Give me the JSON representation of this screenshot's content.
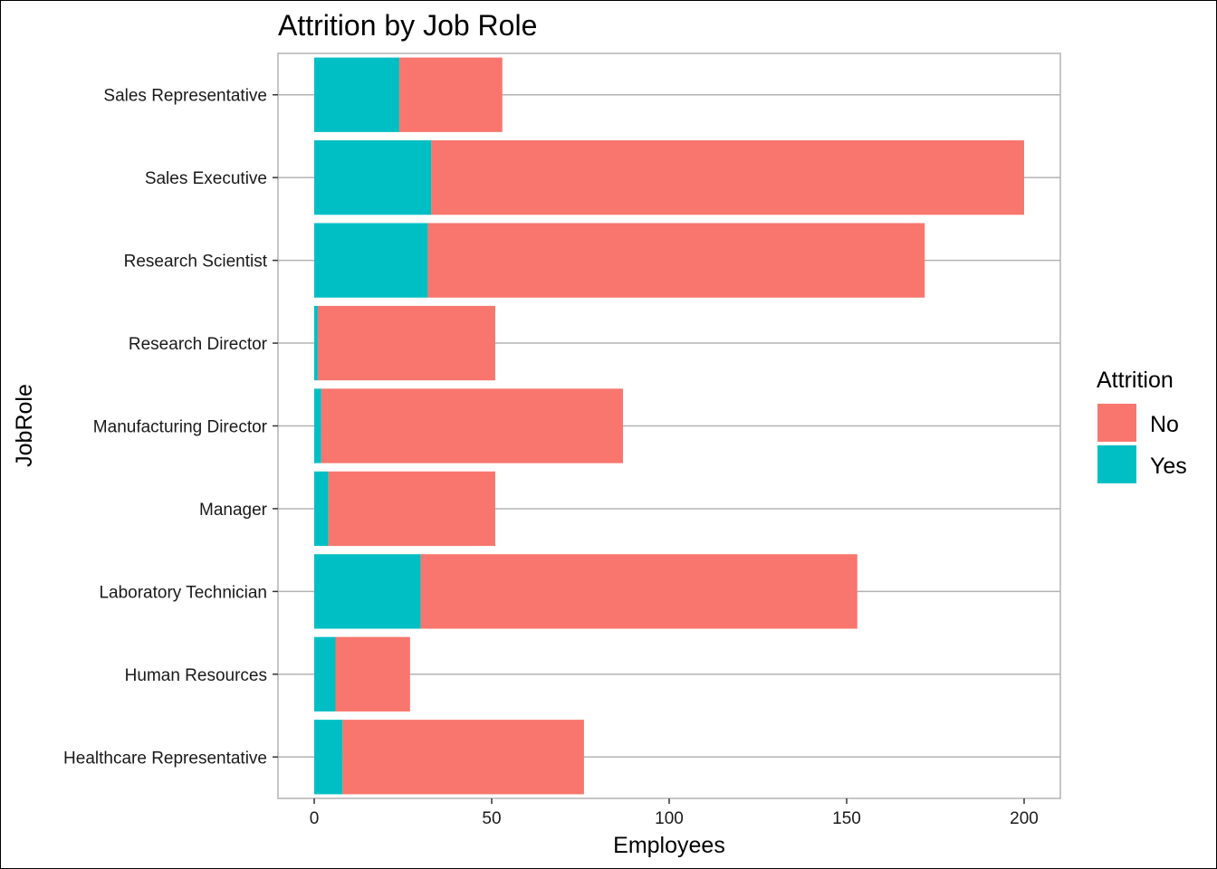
{
  "chart_data": {
    "type": "bar",
    "orientation": "horizontal",
    "stacked": true,
    "title": "Attrition by Job Role",
    "xlabel": "Employees",
    "ylabel": "JobRole",
    "categories": [
      "Sales Representative",
      "Sales Executive",
      "Research Scientist",
      "Research Director",
      "Manufacturing Director",
      "Manager",
      "Laboratory Technician",
      "Human Resources",
      "Healthcare Representative"
    ],
    "series": [
      {
        "name": "Yes",
        "color": "#00BFC4",
        "values": [
          24,
          33,
          32,
          1,
          2,
          4,
          30,
          6,
          8
        ]
      },
      {
        "name": "No",
        "color": "#F8766D",
        "values": [
          29,
          167,
          140,
          50,
          85,
          47,
          123,
          21,
          68
        ]
      }
    ],
    "xlim": [
      -10,
      210
    ],
    "xticks": [
      0,
      50,
      100,
      150,
      200
    ],
    "grid": true,
    "legend": {
      "title": "Attrition",
      "position": "right",
      "entries": [
        {
          "name": "No",
          "color": "#F8766D"
        },
        {
          "name": "Yes",
          "color": "#00BFC4"
        }
      ]
    }
  }
}
